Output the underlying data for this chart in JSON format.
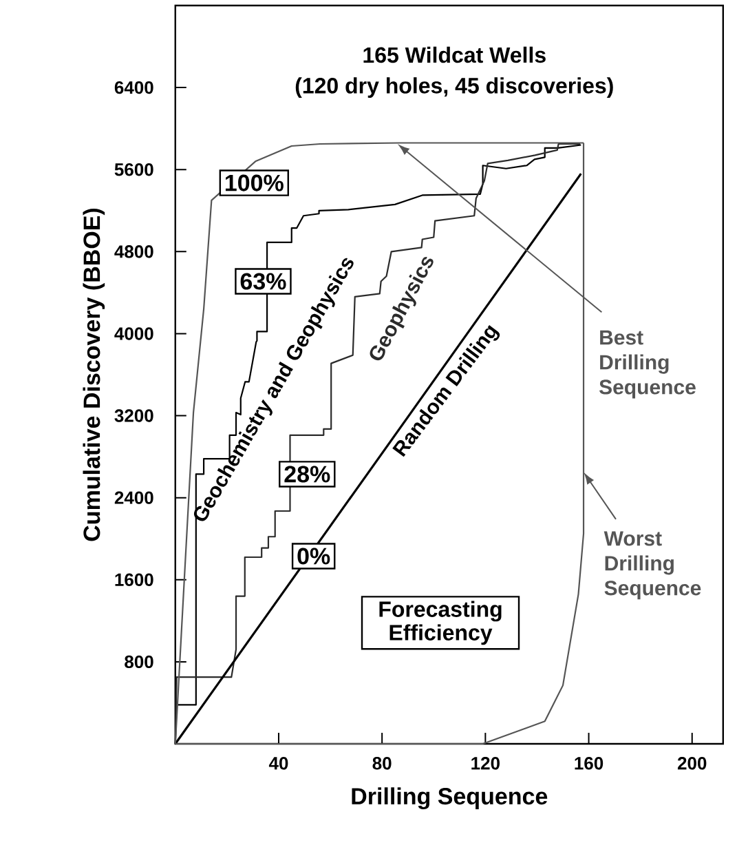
{
  "chart_data": {
    "type": "line",
    "title": "165 Wildcat Wells",
    "subtitle": "(120 dry holes, 45 discoveries)",
    "xlabel": "Drilling Sequence",
    "ylabel": "Cumulative Discovery (BBOE)",
    "xlim": [
      0,
      212
    ],
    "ylim": [
      0,
      7200
    ],
    "xticks": [
      40,
      80,
      120,
      160,
      200
    ],
    "yticks": [
      800,
      1600,
      2400,
      3200,
      4000,
      4800,
      5600,
      6400
    ],
    "series": [
      {
        "name": "Geochemistry and Geophysics",
        "color": "#000000",
        "x": [
          0,
          0.5,
          8,
          8,
          11,
          11,
          21,
          21,
          23.5,
          23.5,
          25.3,
          25.3,
          27,
          28.5,
          31.3,
          31.6,
          31.6,
          35.5,
          35.5,
          45,
          45,
          47,
          49.6,
          55.6,
          55.6,
          67,
          85,
          95.6,
          118,
          119,
          119,
          128,
          136,
          139,
          143,
          143,
          148,
          157
        ],
        "values": [
          0,
          380,
          380,
          2630,
          2630,
          2780,
          2780,
          3010,
          3010,
          3230,
          3210,
          3370,
          3530,
          3530,
          3920,
          3930,
          4020,
          4020,
          4890,
          4890,
          5030,
          5030,
          5150,
          5170,
          5200,
          5210,
          5260,
          5350,
          5360,
          5460,
          5640,
          5610,
          5640,
          5700,
          5720,
          5810,
          5810,
          5840
        ]
      },
      {
        "name": "Geophysics",
        "color": "#2b2b2b",
        "x": [
          0,
          0.5,
          21.7,
          23.5,
          23.5,
          26.9,
          26.9,
          33.4,
          33.4,
          36,
          36,
          38.6,
          38.6,
          44.4,
          44.4,
          57.4,
          57.4,
          60.3,
          60.3,
          68.7,
          69.5,
          79.1,
          79.6,
          81.7,
          83.6,
          95.3,
          95.6,
          100,
          100.5,
          115.7,
          116.4,
          119.6,
          120.9,
          128.7,
          139.2,
          147.8,
          148.3,
          156.7
        ],
        "values": [
          0,
          650,
          650,
          920,
          1440,
          1440,
          1820,
          1820,
          1910,
          1910,
          2020,
          2020,
          2270,
          2270,
          3010,
          3010,
          3070,
          3070,
          3710,
          3790,
          4360,
          4390,
          4510,
          4560,
          4800,
          4840,
          4920,
          4940,
          5100,
          5150,
          5320,
          5490,
          5660,
          5690,
          5740,
          5790,
          5850,
          5850
        ]
      },
      {
        "name": "Random Drilling",
        "color": "#000000",
        "x": [
          0,
          157
        ],
        "values": [
          0,
          5560
        ]
      },
      {
        "name": "Best Drilling Sequence",
        "color": "#555555",
        "x": [
          0,
          7,
          11,
          14,
          31,
          45,
          56,
          87,
          158
        ],
        "values": [
          0,
          3230,
          4240,
          5300,
          5680,
          5830,
          5850,
          5860,
          5860
        ]
      },
      {
        "name": "Worst Drilling Sequence",
        "color": "#555555",
        "x": [
          0,
          119,
          143,
          150,
          156,
          158,
          158,
          158,
          158
        ],
        "values": [
          0,
          0,
          220,
          570,
          1460,
          2050,
          2650,
          3570,
          5860
        ]
      }
    ],
    "legend": "right",
    "annotations": [
      "100%",
      "63%",
      "28%",
      "0%",
      "Forecasting Efficiency"
    ]
  }
}
